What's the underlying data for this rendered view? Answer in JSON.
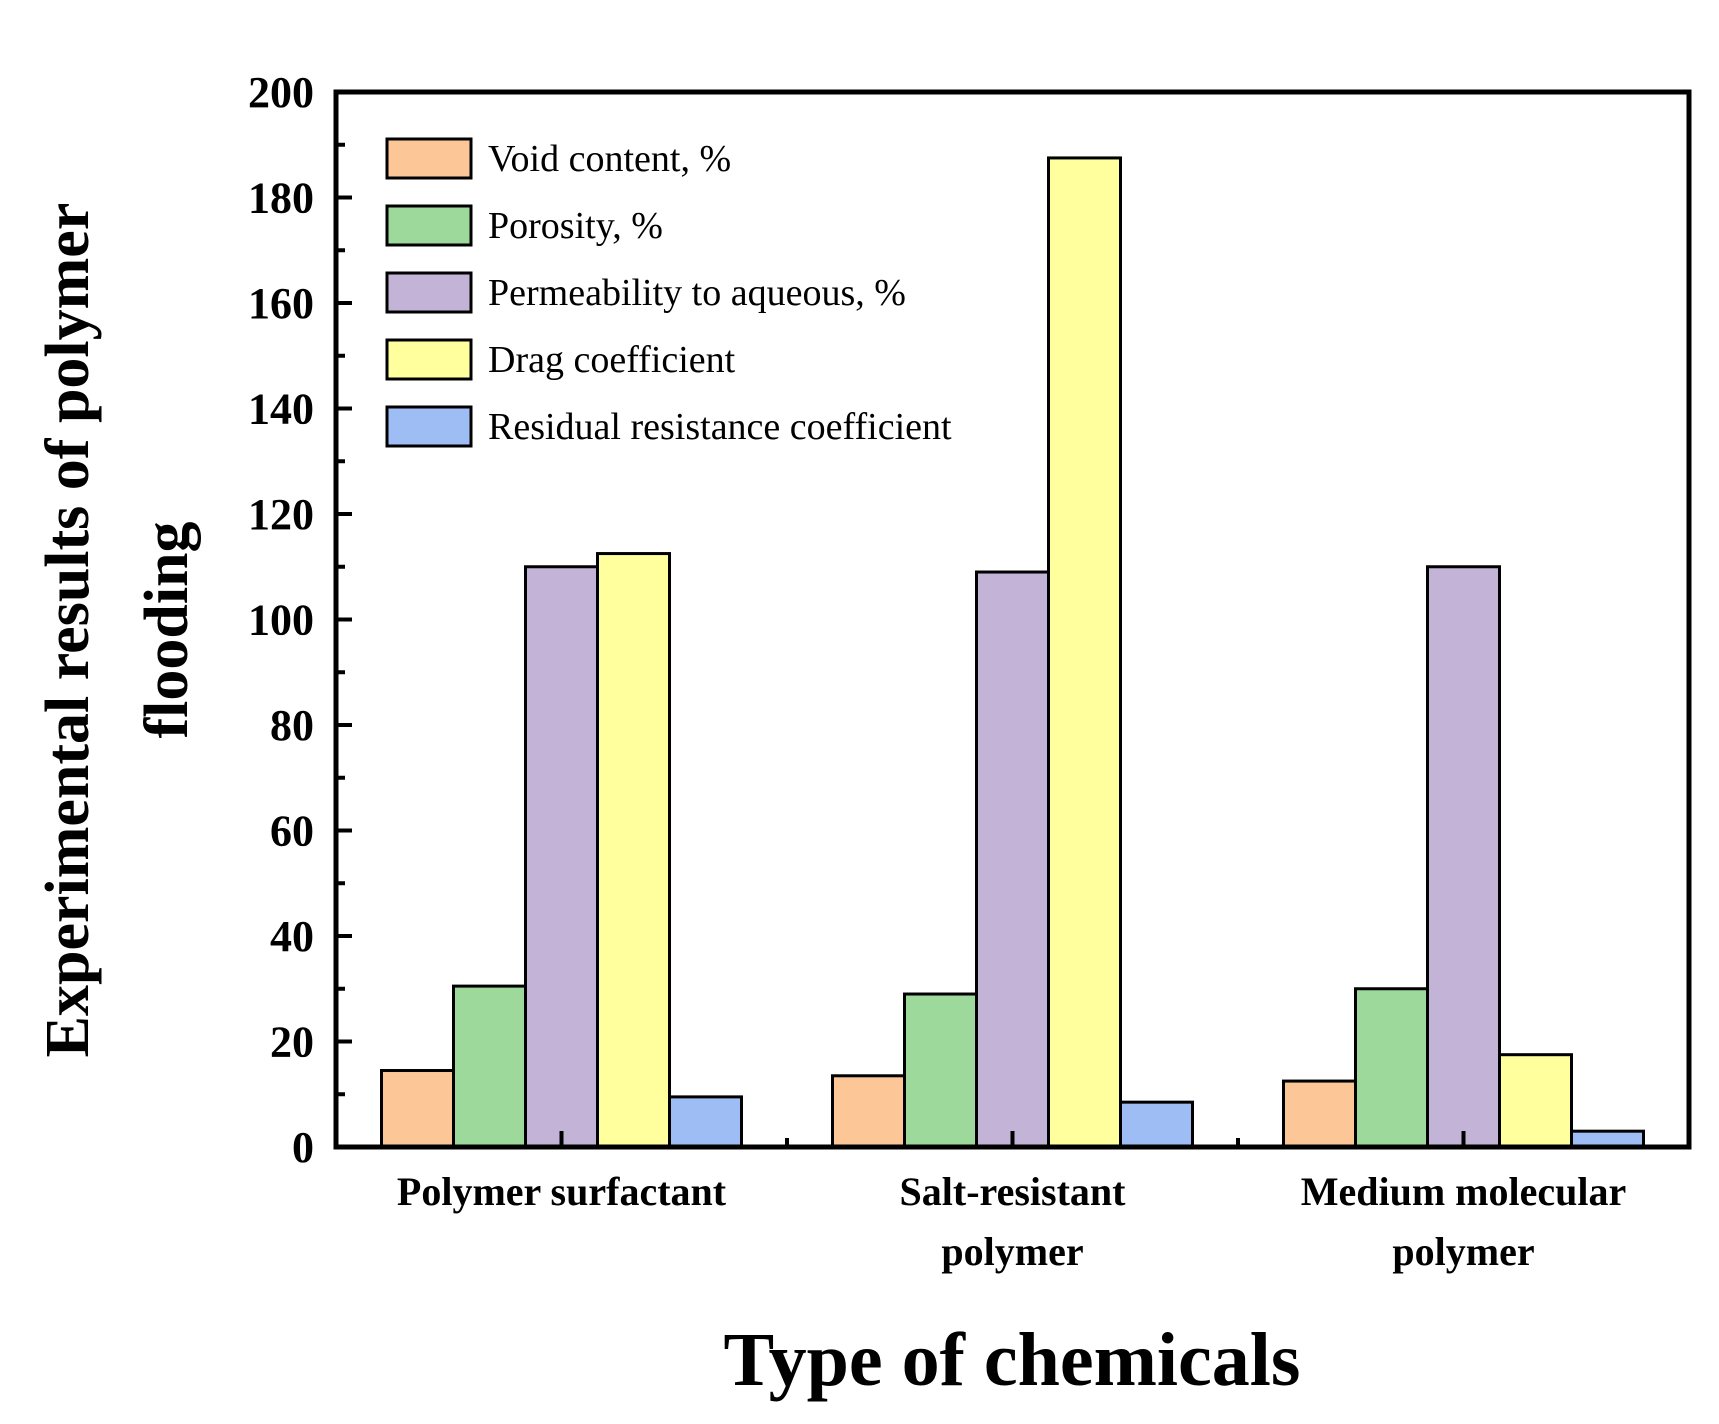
{
  "chart_data": {
    "type": "bar",
    "title": "",
    "xlabel": "Type of chemicals",
    "ylabel_lines": [
      "Experimental results of polymer",
      "flooding"
    ],
    "ylim": [
      0,
      200
    ],
    "y_major_ticks": [
      0,
      20,
      40,
      60,
      80,
      100,
      120,
      140,
      160,
      180,
      200
    ],
    "grid": false,
    "legend_position": "top-left",
    "categories": [
      [
        "Polymer surfactant"
      ],
      [
        "Salt-resistant",
        "polymer"
      ],
      [
        "Medium molecular",
        "polymer"
      ]
    ],
    "series": [
      {
        "name": "Void content, %",
        "color": "#FCC696",
        "values": [
          14.5,
          13.5,
          12.5
        ]
      },
      {
        "name": "Porosity, %",
        "color": "#9ED99C",
        "values": [
          30.5,
          29,
          30
        ]
      },
      {
        "name": "Permeability to aqueous, %",
        "color": "#C3B3D6",
        "values": [
          110,
          109,
          110
        ]
      },
      {
        "name": "Drag coefficient",
        "color": "#FFFF9D",
        "values": [
          112.5,
          187.5,
          17.5
        ]
      },
      {
        "name": "Residual resistance coefficient",
        "color": "#9EBDF5",
        "values": [
          9.5,
          8.5,
          3
        ]
      }
    ]
  }
}
